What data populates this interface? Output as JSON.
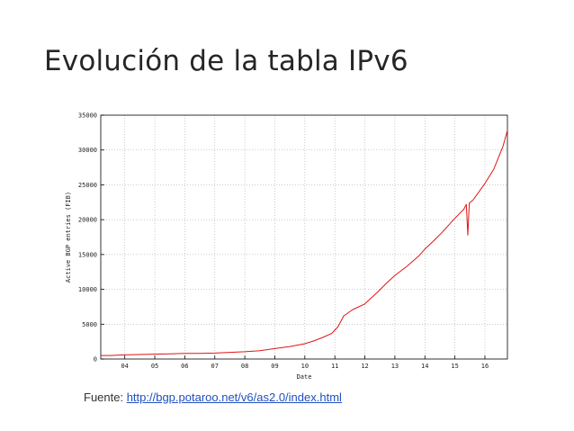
{
  "slide": {
    "title": "Evolución de la tabla IPv6",
    "source_prefix": "Fuente: ",
    "source_url": "http://bgp.potaroo.net/v6/as2.0/index.html"
  },
  "colors": {
    "line": "#e01414",
    "grid": "#9a9a9a",
    "axis": "#000000"
  },
  "chart_data": {
    "type": "line",
    "title": "",
    "xlabel": "Date",
    "ylabel": "Active BGP entries (FIB)",
    "xlim": [
      2003.2,
      2016.75
    ],
    "ylim": [
      0,
      35000
    ],
    "grid": true,
    "x_ticks": [
      2004,
      2005,
      2006,
      2007,
      2008,
      2009,
      2010,
      2011,
      2012,
      2013,
      2014,
      2015,
      2016
    ],
    "x_tick_labels": [
      "04",
      "05",
      "06",
      "07",
      "08",
      "09",
      "10",
      "11",
      "12",
      "13",
      "14",
      "15",
      "16"
    ],
    "y_ticks": [
      0,
      5000,
      10000,
      15000,
      20000,
      25000,
      30000,
      35000
    ],
    "y_tick_labels": [
      "0",
      "5000",
      "10000",
      "15000",
      "20000",
      "25000",
      "30000",
      "35000"
    ],
    "series": [
      {
        "x": [
          2003.2,
          2003.5,
          2004.0,
          2004.5,
          2005.0,
          2005.5,
          2006.0,
          2006.5,
          2007.0,
          2007.5,
          2008.0,
          2008.5,
          2009.0,
          2009.5,
          2010.0,
          2010.3,
          2010.6,
          2010.9,
          2011.1,
          2011.3,
          2011.6,
          2012.0,
          2012.4,
          2012.7,
          2013.0,
          2013.4,
          2013.8,
          2014.0,
          2014.3,
          2014.6,
          2015.0,
          2015.3,
          2015.38,
          2015.43,
          2015.48,
          2015.6,
          2016.0,
          2016.3,
          2016.6,
          2016.75
        ],
        "y": [
          500,
          500,
          600,
          650,
          700,
          750,
          800,
          800,
          850,
          950,
          1050,
          1200,
          1500,
          1800,
          2200,
          2600,
          3100,
          3700,
          4600,
          6200,
          7100,
          7900,
          9500,
          10800,
          12000,
          13300,
          14800,
          15800,
          17000,
          18300,
          20200,
          21500,
          22200,
          17800,
          22400,
          22800,
          25200,
          27300,
          30500,
          32800
        ]
      }
    ]
  }
}
